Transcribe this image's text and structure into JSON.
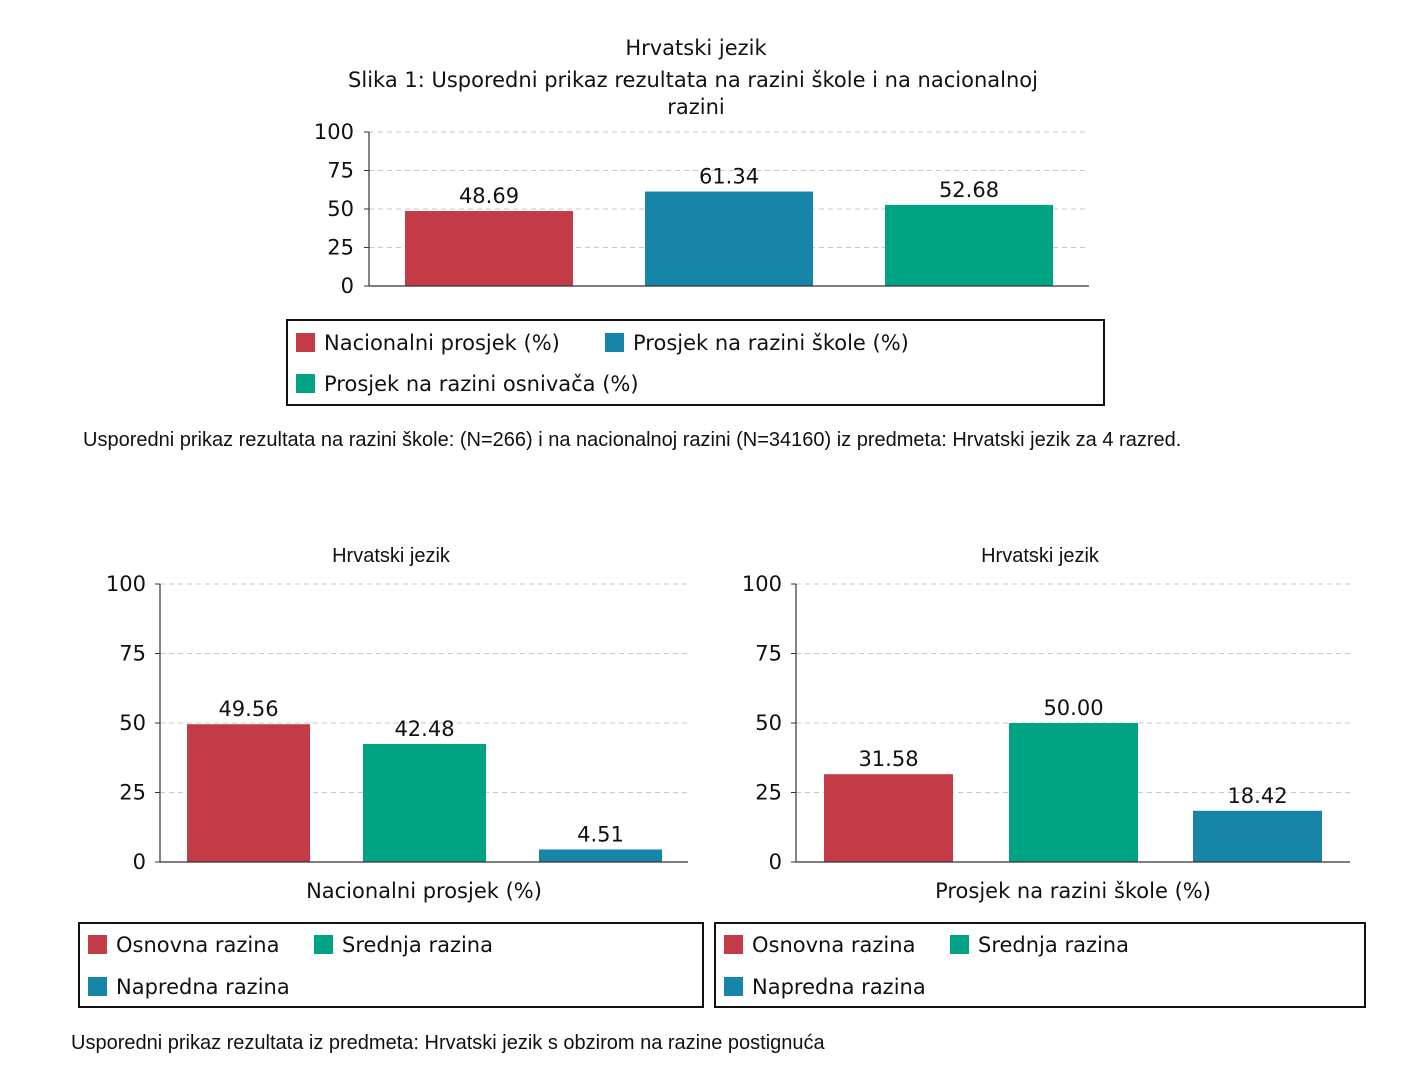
{
  "chart_data": [
    {
      "type": "bar",
      "title_line1": "Hrvatski jezik",
      "title_line2": "Slika 1: Usporedni prikaz rezultata na razini škole i na nacionalnoj",
      "title_line3": "razini",
      "categories": [
        "Nacionalni prosjek (%)",
        "Prosjek na razini škole (%)",
        "Prosjek na razini osnivača (%)"
      ],
      "values": [
        48.69,
        61.34,
        52.68
      ],
      "value_labels": [
        "48.69",
        "61.34",
        "52.68"
      ],
      "colors": [
        "#c23b47",
        "#1785a8",
        "#00a384"
      ],
      "yticks": [
        "0",
        "25",
        "50",
        "75",
        "100"
      ],
      "ylim": [
        0,
        100
      ],
      "grid": true,
      "legend_position": "below",
      "xlabel": "",
      "ylabel": "",
      "caption": "Usporedni prikaz rezultata na razini škole: (N=266) i na nacionalnoj razini (N=34160) iz predmeta: Hrvatski jezik za 4 razred."
    },
    {
      "type": "bar",
      "title": "Hrvatski jezik",
      "categories": [
        "Osnovna razina",
        "Srednja razina",
        "Napredna razina"
      ],
      "values": [
        49.56,
        42.48,
        4.51
      ],
      "value_labels": [
        "49.56",
        "42.48",
        "4.51"
      ],
      "colors": [
        "#c23b47",
        "#00a384",
        "#1785a8"
      ],
      "yticks": [
        "0",
        "25",
        "50",
        "75",
        "100"
      ],
      "ylim": [
        0,
        100
      ],
      "grid": true,
      "legend_position": "below",
      "xlabel": "Nacionalni prosjek (%)",
      "ylabel": ""
    },
    {
      "type": "bar",
      "title": "Hrvatski jezik",
      "categories": [
        "Osnovna razina",
        "Srednja razina",
        "Napredna razina"
      ],
      "values": [
        31.58,
        50.0,
        18.42
      ],
      "value_labels": [
        "31.58",
        "50.00",
        "18.42"
      ],
      "colors": [
        "#c23b47",
        "#00a384",
        "#1785a8"
      ],
      "yticks": [
        "0",
        "25",
        "50",
        "75",
        "100"
      ],
      "ylim": [
        0,
        100
      ],
      "grid": true,
      "legend_position": "below",
      "xlabel": "Prosjek na razini škole (%)",
      "ylabel": ""
    }
  ],
  "footer_caption": "Usporedni prikaz rezultata iz predmeta: Hrvatski jezik s obzirom na razine postignuća"
}
